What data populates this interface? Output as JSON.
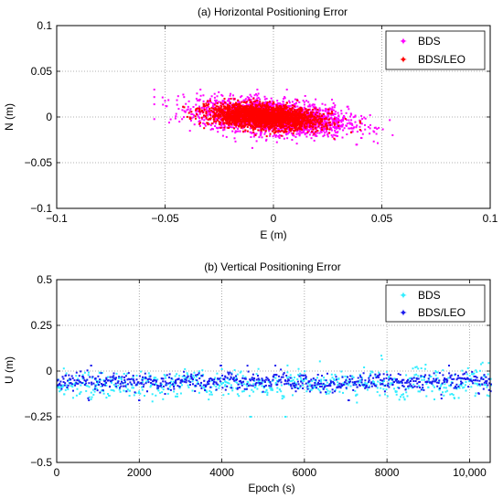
{
  "chart_data": [
    {
      "type": "scatter",
      "title": "(a) Horizontal Positioning Error",
      "xlabel": "E (m)",
      "ylabel": "N (m)",
      "xlim": [
        -0.1,
        0.1
      ],
      "ylim": [
        -0.1,
        0.1
      ],
      "xticks": [
        -0.1,
        -0.05,
        0,
        0.05,
        0.1
      ],
      "yticks": [
        -0.1,
        -0.05,
        0,
        0.05,
        0.1
      ],
      "xtick_labels": [
        "−0.1",
        "−0.05",
        "0",
        "0.05",
        "0.1"
      ],
      "ytick_labels": [
        "−0.1",
        "−0.05",
        "0",
        "0.05",
        "0.1"
      ],
      "grid": true,
      "legend_position": "top-right",
      "series": [
        {
          "name": "BDS",
          "color": "#ff00ff",
          "cloud": {
            "center": [
              0.0,
              0.0
            ],
            "spread": [
              0.017,
              0.0095
            ],
            "correlation": -0.35,
            "range_x": [
              -0.055,
              0.055
            ],
            "range_y": [
              -0.04,
              0.03
            ],
            "count": 2600
          }
        },
        {
          "name": "BDS/LEO",
          "color": "#ff0000",
          "cloud": {
            "center": [
              -0.004,
              0.0
            ],
            "spread": [
              0.0125,
              0.0065
            ],
            "correlation": -0.3,
            "range_x": [
              -0.045,
              0.04
            ],
            "range_y": [
              -0.03,
              0.02
            ],
            "count": 2400
          }
        }
      ]
    },
    {
      "type": "scatter",
      "title": "(b) Vertical Positioning Error",
      "xlabel": "Epoch (s)",
      "ylabel": "U (m)",
      "xlim": [
        0,
        10500
      ],
      "ylim": [
        -0.5,
        0.5
      ],
      "xticks": [
        0,
        2000,
        4000,
        6000,
        8000,
        10000
      ],
      "yticks": [
        -0.5,
        -0.25,
        0,
        0.25,
        0.5
      ],
      "xtick_labels": [
        "0",
        "2000",
        "4000",
        "6000",
        "8000",
        "10,000"
      ],
      "ytick_labels": [
        "−0.5",
        "−0.25",
        "0",
        "0.25",
        "0.5"
      ],
      "grid": true,
      "legend_position": "top-right",
      "series": [
        {
          "name": "BDS",
          "color": "#33eeff",
          "band": {
            "mean": -0.07,
            "amplitude": 0.06,
            "range_y": [
              -0.25,
              0.13
            ],
            "step": 30
          }
        },
        {
          "name": "BDS/LEO",
          "color": "#1a1aee",
          "band": {
            "mean": -0.06,
            "amplitude": 0.035,
            "range_y": [
              -0.16,
              0.03
            ],
            "step": 30
          }
        }
      ]
    }
  ]
}
